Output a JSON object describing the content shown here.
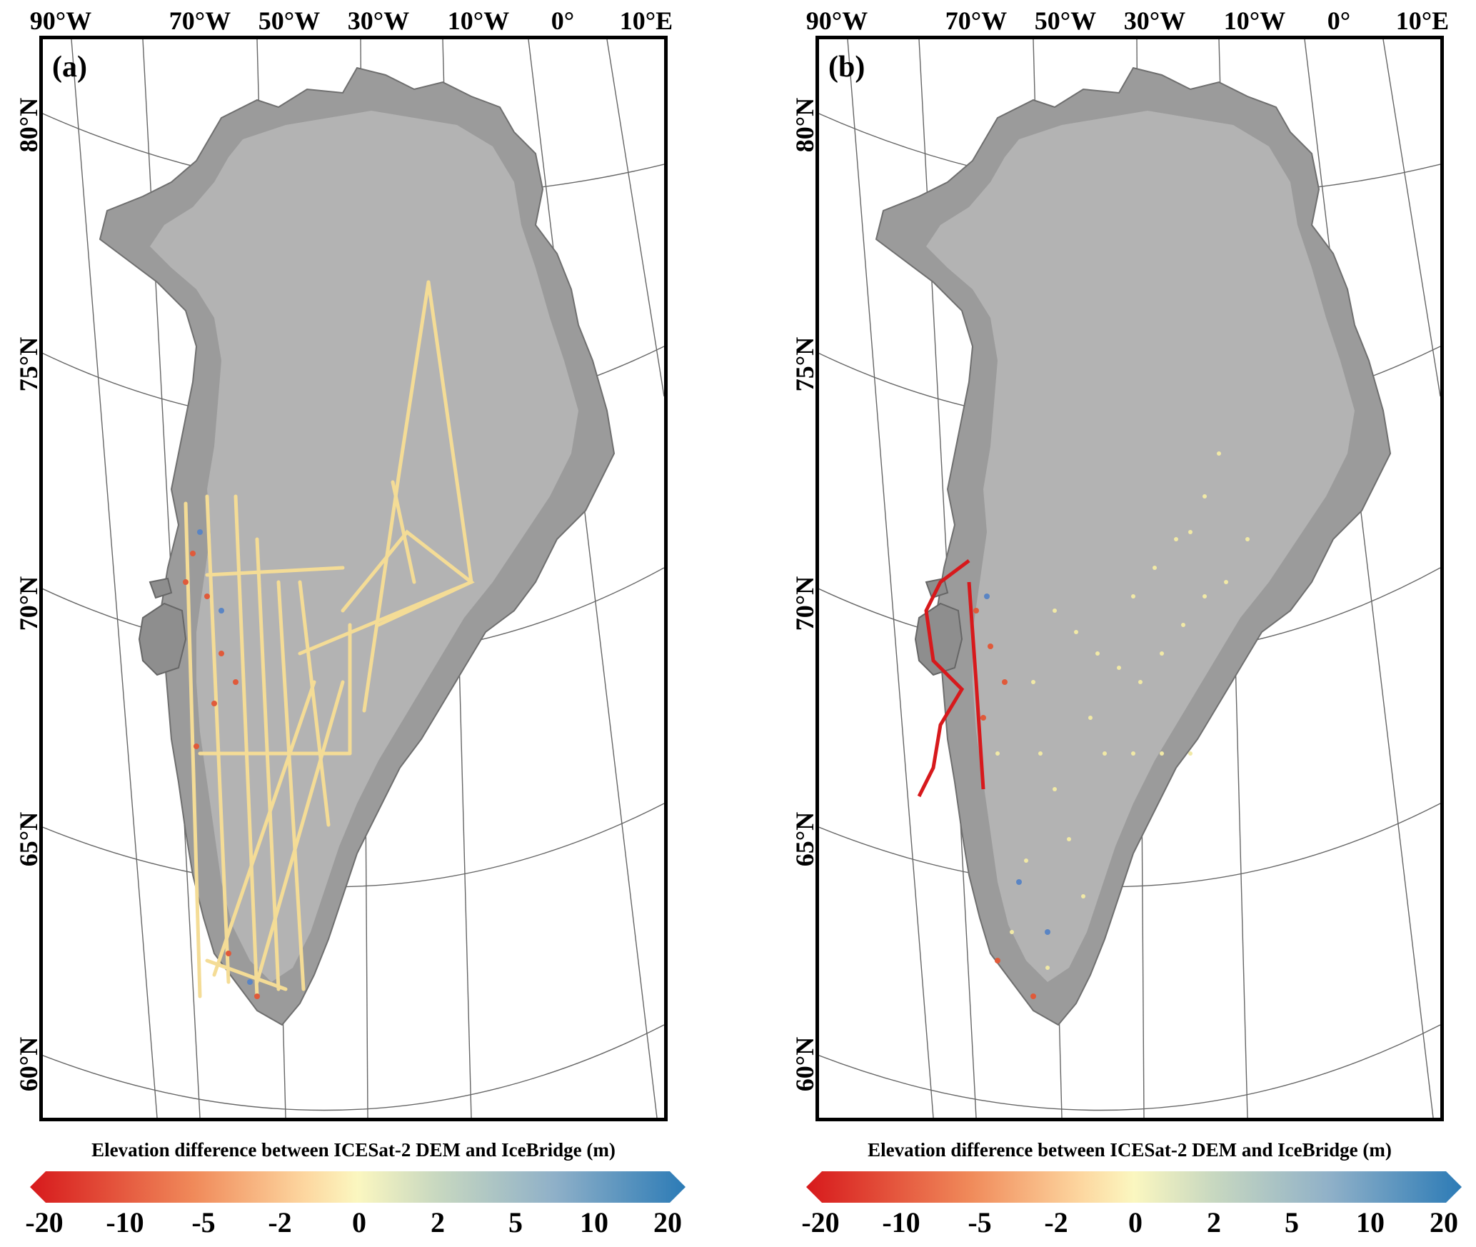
{
  "panels": [
    {
      "id": "a",
      "label": "(a)",
      "lon_labels": [
        "90°W",
        "70°W",
        "50°W",
        "30°W",
        "10°W",
        "0°",
        "10°E"
      ],
      "lat_labels": [
        "80°N",
        "75°N",
        "70°N",
        "65°N",
        "60°N"
      ],
      "colorbar_title": "Elevation difference between ICESat-2 DEM and IceBridge (m)"
    },
    {
      "id": "b",
      "label": "(b)",
      "lon_labels": [
        "90°W",
        "70°W",
        "50°W",
        "30°W",
        "10°W",
        "0°",
        "10°E"
      ],
      "lat_labels": [
        "80°N",
        "75°N",
        "70°N",
        "65°N",
        "60°N"
      ],
      "colorbar_title": "Elevation difference between ICESat-2 DEM and IceBridge (m)"
    }
  ],
  "colorbar": {
    "ticks": [
      "-20",
      "-10",
      "-5",
      "-2",
      "0",
      "2",
      "5",
      "10",
      "20"
    ],
    "colors": [
      "#d7191c",
      "#f08a5a",
      "#fdd7a0",
      "#fbf7c0",
      "#c8d8c0",
      "#8fb0c8",
      "#2c7bb6"
    ]
  },
  "map_colors": {
    "land": "#9a9a9a",
    "ice": "#b4b4b4",
    "grid": "#555555"
  }
}
